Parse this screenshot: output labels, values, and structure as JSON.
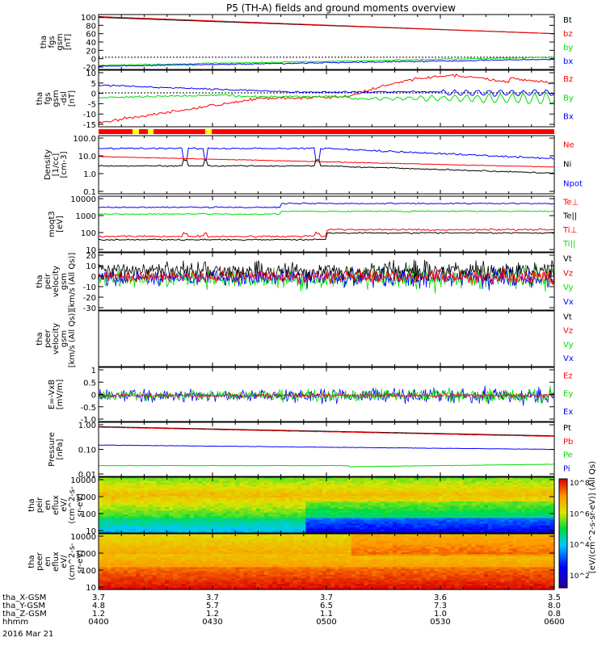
{
  "title": "P5 (TH-A) fields and ground moments overview",
  "date_label": "2016 Mar 21",
  "colors": {
    "black": "#000000",
    "red": "#ff0000",
    "green": "#00dd00",
    "blue": "#0000ff",
    "yellow": "#ffff00"
  },
  "chart_data": [
    {
      "id": "p1",
      "type": "line",
      "ylabel": [
        "tha",
        "fgs",
        "gsm",
        "[nT]"
      ],
      "yticks": [
        "100",
        "80",
        "60",
        "40",
        "20",
        "0",
        "-20"
      ],
      "ylim": [
        -30,
        105
      ],
      "series": [
        {
          "name": "Bt",
          "color": "black",
          "start": 98,
          "end": 58
        },
        {
          "name": "bz",
          "color": "red",
          "start": 100,
          "end": 58
        },
        {
          "name": "by",
          "color": "green",
          "start": -20,
          "end": 0
        },
        {
          "name": "bx",
          "color": "blue",
          "start": -22,
          "end": -5
        }
      ]
    },
    {
      "id": "p2",
      "type": "line",
      "ylabel": [
        "tha",
        "fgs",
        "gsm",
        "-dsl",
        "[nT]"
      ],
      "yticks": [
        "10",
        "5",
        "0",
        "-5",
        "-10",
        "-15"
      ],
      "ylim": [
        -18,
        12
      ],
      "series": [
        {
          "name": "Bz",
          "color": "red"
        },
        {
          "name": "By",
          "color": "green"
        },
        {
          "name": "Bx",
          "color": "blue"
        }
      ]
    },
    {
      "id": "bar",
      "type": "bar",
      "note": "flag"
    },
    {
      "id": "p3",
      "type": "line",
      "ylabel": [
        "Density",
        "[1/cc]",
        "[cm-3]"
      ],
      "yticks": [
        "100.0",
        "10.0",
        "1.0",
        "0.1"
      ],
      "scale": "log",
      "series": [
        {
          "name": "Ne",
          "color": "red"
        },
        {
          "name": "Ni",
          "color": "black"
        },
        {
          "name": "Npot",
          "color": "blue"
        }
      ]
    },
    {
      "id": "p4",
      "type": "line",
      "ylabel": [
        "moqt3",
        "[eV]"
      ],
      "yticks": [
        "10000",
        "1000",
        "100",
        "10"
      ],
      "scale": "log",
      "series": [
        {
          "name": "Te⊥",
          "color": "red"
        },
        {
          "name": "Te||",
          "color": "black"
        },
        {
          "name": "Ti⊥",
          "color": "red"
        },
        {
          "name": "Ti||",
          "color": "green"
        }
      ]
    },
    {
      "id": "p5",
      "type": "line",
      "ylabel": [
        "tha",
        "peir",
        "velocity",
        "gsm",
        "[km/s (All Qs)]"
      ],
      "yticks": [
        "20",
        "10",
        "0",
        "-10",
        "-20",
        "-30"
      ],
      "series": [
        {
          "name": "Vt",
          "color": "black"
        },
        {
          "name": "Vz",
          "color": "red"
        },
        {
          "name": "Vy",
          "color": "green"
        },
        {
          "name": "Vx",
          "color": "blue"
        }
      ]
    },
    {
      "id": "p6",
      "type": "line",
      "ylabel": [
        "tha",
        "peer",
        "velocity",
        "gsm",
        "[km/s (All Qs)]"
      ],
      "yticks": [],
      "series": [
        {
          "name": "Vt",
          "color": "black"
        },
        {
          "name": "Vz",
          "color": "red"
        },
        {
          "name": "Vy",
          "color": "green"
        },
        {
          "name": "Vx",
          "color": "blue"
        }
      ]
    },
    {
      "id": "p7",
      "type": "line",
      "ylabel": [
        "E=-VxB",
        "[mV/m]"
      ],
      "yticks": [
        "1",
        "0.5",
        "0",
        "-0.5",
        "-1.0"
      ],
      "series": [
        {
          "name": "Ez",
          "color": "red"
        },
        {
          "name": "Ey",
          "color": "green"
        },
        {
          "name": "Ex",
          "color": "blue"
        }
      ]
    },
    {
      "id": "p8",
      "type": "line",
      "ylabel": [
        "Pressure",
        "[nPa]"
      ],
      "yticks": [
        "1.00",
        "0.10",
        "0.01"
      ],
      "scale": "log",
      "series": [
        {
          "name": "Pt",
          "color": "black"
        },
        {
          "name": "Pb",
          "color": "red"
        },
        {
          "name": "Pe",
          "color": "green"
        },
        {
          "name": "Pi",
          "color": "blue"
        }
      ]
    },
    {
      "id": "p9",
      "type": "heatmap",
      "ylabel": [
        "tha",
        "peir",
        "en",
        "eflux",
        "eV/",
        "(cm^2-s-",
        "sr-eV)"
      ],
      "yticks": [
        "10000",
        "1000",
        "100",
        "10"
      ]
    },
    {
      "id": "p10",
      "type": "heatmap",
      "ylabel": [
        "tha",
        "peer",
        "en",
        "eflux",
        "eV/",
        "(cm^2-s-",
        "sr-eV)"
      ],
      "yticks": [
        "10000",
        "1000",
        "100",
        "10"
      ]
    }
  ],
  "colorbar": {
    "label": "[eV/(cm^2-s-sr-eV)] (All Qs)",
    "ticks": [
      "10^8",
      "10^6",
      "10^4",
      "10^2"
    ]
  },
  "xaxis": {
    "rows": [
      {
        "label": "tha_X-GSM",
        "values": [
          "3.7",
          "3.7",
          "3.7",
          "3.6",
          "3.5"
        ]
      },
      {
        "label": "tha_Y-GSM",
        "values": [
          "4.8",
          "5.7",
          "6.5",
          "7.3",
          "8.0"
        ]
      },
      {
        "label": "tha_Z-GSM",
        "values": [
          "1.2",
          "1.2",
          "1.1",
          "1.0",
          "0.8"
        ]
      },
      {
        "label": "hhmm",
        "values": [
          "0400",
          "0430",
          "0500",
          "0530",
          "0600"
        ]
      }
    ]
  }
}
